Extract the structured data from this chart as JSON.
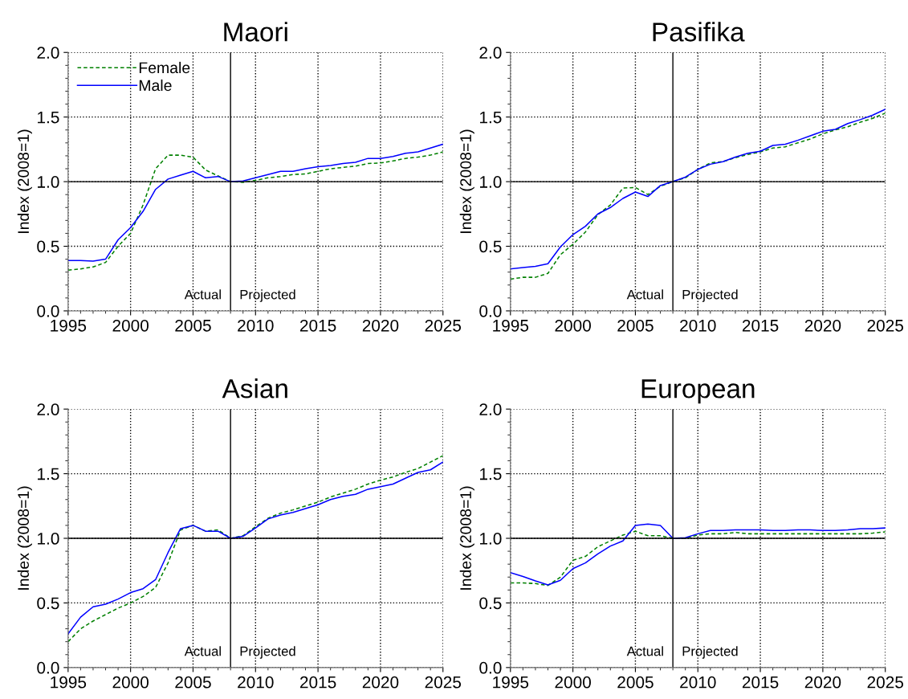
{
  "chart_data": [
    {
      "type": "line",
      "title": "Maori",
      "ylabel": "Index (2008=1)",
      "x": [
        1995,
        1996,
        1997,
        1998,
        1999,
        2000,
        2001,
        2002,
        2003,
        2004,
        2005,
        2006,
        2007,
        2008,
        2009,
        2010,
        2011,
        2012,
        2013,
        2014,
        2015,
        2016,
        2017,
        2018,
        2019,
        2020,
        2021,
        2022,
        2023,
        2024,
        2025
      ],
      "series": [
        {
          "name": "Female",
          "color": "#008000",
          "line_style": "dashed",
          "values": [
            0.315,
            0.325,
            0.34,
            0.375,
            0.5,
            0.6,
            0.82,
            1.1,
            1.205,
            1.205,
            1.19,
            1.09,
            1.045,
            1.0,
            0.995,
            1.01,
            1.03,
            1.04,
            1.055,
            1.06,
            1.08,
            1.1,
            1.11,
            1.12,
            1.14,
            1.145,
            1.16,
            1.18,
            1.19,
            1.205,
            1.23
          ]
        },
        {
          "name": "Male",
          "color": "#0000ff",
          "line_style": "solid",
          "values": [
            0.39,
            0.39,
            0.385,
            0.4,
            0.55,
            0.645,
            0.77,
            0.94,
            1.02,
            1.05,
            1.08,
            1.03,
            1.04,
            1.0,
            1.005,
            1.03,
            1.055,
            1.08,
            1.08,
            1.1,
            1.115,
            1.125,
            1.14,
            1.15,
            1.18,
            1.18,
            1.195,
            1.22,
            1.23,
            1.26,
            1.29
          ]
        }
      ],
      "xlim": [
        1995,
        2025
      ],
      "xticks": [
        1995,
        2000,
        2005,
        2010,
        2015,
        2020,
        2025
      ],
      "ylim": [
        0,
        2
      ],
      "yticks": [
        {
          "value": 0,
          "label": "0.0"
        },
        {
          "value": 0.5,
          "label": "0.5"
        },
        {
          "value": 1,
          "label": "1.0"
        },
        {
          "value": 1.5,
          "label": "1.5"
        },
        {
          "value": 2,
          "label": "2.0"
        }
      ],
      "ref_lines": [
        {
          "axis": "y",
          "value": 1,
          "color": "#000000"
        },
        {
          "axis": "x",
          "value": 2008,
          "color": "#000000"
        }
      ],
      "annotations": [
        "Actual",
        "Projected"
      ],
      "grid": true,
      "legend": "top left"
    },
    {
      "type": "line",
      "title": "Pasifika",
      "ylabel": "Index (2008=1)",
      "x": [
        1995,
        1996,
        1997,
        1998,
        1999,
        2000,
        2001,
        2002,
        2003,
        2004,
        2005,
        2006,
        2007,
        2008,
        2009,
        2010,
        2011,
        2012,
        2013,
        2014,
        2015,
        2016,
        2017,
        2018,
        2019,
        2020,
        2021,
        2022,
        2023,
        2024,
        2025
      ],
      "series": [
        {
          "color": "#008000",
          "line_style": "dashed",
          "values": [
            0.245,
            0.26,
            0.26,
            0.29,
            0.435,
            0.515,
            0.61,
            0.745,
            0.82,
            0.95,
            0.955,
            0.9,
            0.965,
            1.0,
            1.03,
            1.095,
            1.145,
            1.155,
            1.185,
            1.21,
            1.23,
            1.26,
            1.27,
            1.3,
            1.33,
            1.37,
            1.4,
            1.425,
            1.46,
            1.49,
            1.53
          ]
        },
        {
          "color": "#0000ff",
          "line_style": "solid",
          "values": [
            0.325,
            0.335,
            0.345,
            0.365,
            0.495,
            0.59,
            0.655,
            0.75,
            0.8,
            0.87,
            0.92,
            0.885,
            0.97,
            1.0,
            1.035,
            1.095,
            1.135,
            1.155,
            1.19,
            1.22,
            1.235,
            1.28,
            1.29,
            1.32,
            1.355,
            1.39,
            1.405,
            1.45,
            1.48,
            1.515,
            1.56
          ]
        }
      ],
      "xlim": [
        1995,
        2025
      ],
      "xticks": [
        1995,
        2000,
        2005,
        2010,
        2015,
        2020,
        2025
      ],
      "ylim": [
        0,
        2
      ],
      "yticks": [
        {
          "value": 0,
          "label": "0.0"
        },
        {
          "value": 0.5,
          "label": "0.5"
        },
        {
          "value": 1,
          "label": "1.0"
        },
        {
          "value": 1.5,
          "label": "1.5"
        },
        {
          "value": 2,
          "label": "2.0"
        }
      ],
      "ref_lines": [
        {
          "axis": "y",
          "value": 1,
          "color": "#000000"
        },
        {
          "axis": "x",
          "value": 2008,
          "color": "#000000"
        }
      ],
      "annotations": [
        "Actual",
        "Projected"
      ],
      "grid": true
    },
    {
      "type": "line",
      "title": "Asian",
      "ylabel": "Index (2008=1)",
      "x": [
        1995,
        1996,
        1997,
        1998,
        1999,
        2000,
        2001,
        2002,
        2003,
        2004,
        2005,
        2006,
        2007,
        2008,
        2009,
        2010,
        2011,
        2012,
        2013,
        2014,
        2015,
        2016,
        2017,
        2018,
        2019,
        2020,
        2021,
        2022,
        2023,
        2024,
        2025
      ],
      "series": [
        {
          "color": "#008000",
          "line_style": "dashed",
          "values": [
            0.2,
            0.3,
            0.36,
            0.41,
            0.46,
            0.5,
            0.55,
            0.62,
            0.81,
            1.065,
            1.1,
            1.055,
            1.065,
            1.0,
            1.02,
            1.09,
            1.155,
            1.195,
            1.22,
            1.25,
            1.28,
            1.32,
            1.35,
            1.38,
            1.42,
            1.45,
            1.475,
            1.51,
            1.54,
            1.59,
            1.64
          ]
        },
        {
          "color": "#0000ff",
          "line_style": "solid",
          "values": [
            0.26,
            0.39,
            0.47,
            0.49,
            0.53,
            0.58,
            0.61,
            0.68,
            0.89,
            1.075,
            1.1,
            1.055,
            1.055,
            1.0,
            1.015,
            1.08,
            1.15,
            1.18,
            1.2,
            1.23,
            1.26,
            1.3,
            1.325,
            1.34,
            1.38,
            1.4,
            1.42,
            1.465,
            1.51,
            1.53,
            1.59
          ]
        }
      ],
      "xlim": [
        1995,
        2025
      ],
      "xticks": [
        1995,
        2000,
        2005,
        2010,
        2015,
        2020,
        2025
      ],
      "ylim": [
        0,
        2
      ],
      "yticks": [
        {
          "value": 0,
          "label": "0.0"
        },
        {
          "value": 0.5,
          "label": "0.5"
        },
        {
          "value": 1,
          "label": "1.0"
        },
        {
          "value": 1.5,
          "label": "1.5"
        },
        {
          "value": 2,
          "label": "2.0"
        }
      ],
      "ref_lines": [
        {
          "axis": "y",
          "value": 1,
          "color": "#000000"
        },
        {
          "axis": "x",
          "value": 2008,
          "color": "#000000"
        }
      ],
      "annotations": [
        "Actual",
        "Projected"
      ],
      "grid": true
    },
    {
      "type": "line",
      "title": "European",
      "ylabel": "Index (2008=1)",
      "x": [
        1995,
        1996,
        1997,
        1998,
        1999,
        2000,
        2001,
        2002,
        2003,
        2004,
        2005,
        2006,
        2007,
        2008,
        2009,
        2010,
        2011,
        2012,
        2013,
        2014,
        2015,
        2016,
        2017,
        2018,
        2019,
        2020,
        2021,
        2022,
        2023,
        2024,
        2025
      ],
      "series": [
        {
          "color": "#008000",
          "line_style": "dashed",
          "values": [
            0.655,
            0.655,
            0.65,
            0.635,
            0.7,
            0.83,
            0.86,
            0.935,
            0.98,
            1.025,
            1.055,
            1.02,
            1.02,
            1.0,
            1.0,
            1.025,
            1.035,
            1.035,
            1.045,
            1.035,
            1.035,
            1.035,
            1.035,
            1.035,
            1.035,
            1.035,
            1.035,
            1.035,
            1.035,
            1.04,
            1.05
          ]
        },
        {
          "color": "#0000ff",
          "line_style": "solid",
          "values": [
            0.735,
            0.705,
            0.67,
            0.64,
            0.675,
            0.765,
            0.81,
            0.88,
            0.94,
            0.98,
            1.1,
            1.11,
            1.1,
            1.0,
            1.005,
            1.035,
            1.06,
            1.06,
            1.065,
            1.065,
            1.065,
            1.06,
            1.06,
            1.065,
            1.065,
            1.06,
            1.06,
            1.065,
            1.075,
            1.075,
            1.08
          ]
        }
      ],
      "xlim": [
        1995,
        2025
      ],
      "xticks": [
        1995,
        2000,
        2005,
        2010,
        2015,
        2020,
        2025
      ],
      "ylim": [
        0,
        2
      ],
      "yticks": [
        {
          "value": 0,
          "label": "0.0"
        },
        {
          "value": 0.5,
          "label": "0.5"
        },
        {
          "value": 1,
          "label": "1.0"
        },
        {
          "value": 1.5,
          "label": "1.5"
        },
        {
          "value": 2,
          "label": "2.0"
        }
      ],
      "ref_lines": [
        {
          "axis": "y",
          "value": 1,
          "color": "#000000"
        },
        {
          "axis": "x",
          "value": 2008,
          "color": "#000000"
        }
      ],
      "annotations": [
        "Actual",
        "Projected"
      ],
      "grid": true
    }
  ]
}
